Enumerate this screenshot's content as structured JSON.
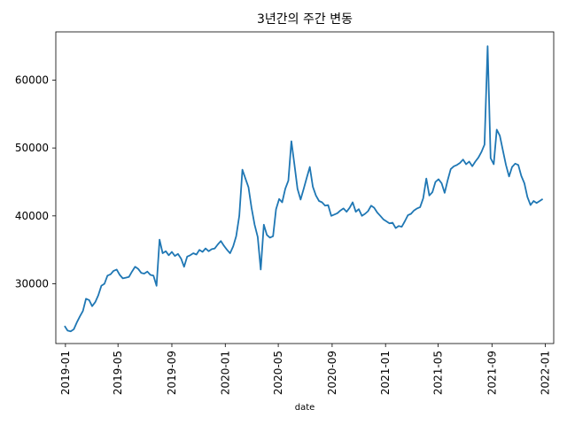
{
  "chart_data": {
    "type": "line",
    "title": "3년간의 주간 변동",
    "xlabel": "date",
    "ylabel": "",
    "grid": false,
    "color": "#1f77b4",
    "x_ticks": [
      "2019-01",
      "2019-05",
      "2019-09",
      "2020-01",
      "2020-05",
      "2020-09",
      "2021-01",
      "2021-05",
      "2021-09",
      "2022-01"
    ],
    "y_ticks": [
      30000,
      40000,
      50000,
      60000
    ],
    "xlim": [
      "2018-12-10",
      "2022-01-20"
    ],
    "ylim": [
      21200,
      67100
    ],
    "series": [
      {
        "x": [
          "2018-12-30",
          "2019-01-06",
          "2019-01-13",
          "2019-01-20",
          "2019-01-27",
          "2019-02-03",
          "2019-02-10",
          "2019-02-17",
          "2019-02-24",
          "2019-03-03",
          "2019-03-10",
          "2019-03-17",
          "2019-03-24",
          "2019-03-31",
          "2019-04-07",
          "2019-04-14",
          "2019-04-21",
          "2019-04-28",
          "2019-05-05",
          "2019-05-12",
          "2019-05-19",
          "2019-05-26",
          "2019-06-02",
          "2019-06-09",
          "2019-06-16",
          "2019-06-23",
          "2019-06-30",
          "2019-07-07",
          "2019-07-14",
          "2019-07-21",
          "2019-07-28",
          "2019-08-04",
          "2019-08-11",
          "2019-08-18",
          "2019-08-25",
          "2019-09-01",
          "2019-09-08",
          "2019-09-15",
          "2019-09-22",
          "2019-09-29",
          "2019-10-06",
          "2019-10-13",
          "2019-10-20",
          "2019-10-27",
          "2019-11-03",
          "2019-11-10",
          "2019-11-17",
          "2019-11-24",
          "2019-12-01",
          "2019-12-08",
          "2019-12-15",
          "2019-12-22",
          "2019-12-29",
          "2020-01-05",
          "2020-01-12",
          "2020-01-19",
          "2020-01-26",
          "2020-02-02",
          "2020-02-09",
          "2020-02-16",
          "2020-02-23",
          "2020-03-01",
          "2020-03-08",
          "2020-03-15",
          "2020-03-22",
          "2020-03-29",
          "2020-04-05",
          "2020-04-12",
          "2020-04-19",
          "2020-04-26",
          "2020-05-03",
          "2020-05-10",
          "2020-05-17",
          "2020-05-24",
          "2020-05-31",
          "2020-06-07",
          "2020-06-14",
          "2020-06-21",
          "2020-06-28",
          "2020-07-05",
          "2020-07-12",
          "2020-07-19",
          "2020-07-26",
          "2020-08-02",
          "2020-08-09",
          "2020-08-16",
          "2020-08-23",
          "2020-08-30",
          "2020-09-06",
          "2020-09-13",
          "2020-09-20",
          "2020-09-27",
          "2020-10-04",
          "2020-10-11",
          "2020-10-18",
          "2020-10-25",
          "2020-11-01",
          "2020-11-08",
          "2020-11-15",
          "2020-11-22",
          "2020-11-29",
          "2020-12-06",
          "2020-12-13",
          "2020-12-20",
          "2020-12-27",
          "2021-01-03",
          "2021-01-10",
          "2021-01-17",
          "2021-01-24",
          "2021-01-31",
          "2021-02-07",
          "2021-02-14",
          "2021-02-21",
          "2021-02-28",
          "2021-03-07",
          "2021-03-14",
          "2021-03-21",
          "2021-03-28",
          "2021-04-04",
          "2021-04-11",
          "2021-04-18",
          "2021-04-25",
          "2021-05-02",
          "2021-05-09",
          "2021-05-16",
          "2021-05-23",
          "2021-05-30",
          "2021-06-06",
          "2021-06-13",
          "2021-06-20",
          "2021-06-27",
          "2021-07-04",
          "2021-07-11",
          "2021-07-18",
          "2021-07-25",
          "2021-08-01",
          "2021-08-08",
          "2021-08-15",
          "2021-08-22",
          "2021-08-29",
          "2021-09-05",
          "2021-09-12",
          "2021-09-19",
          "2021-09-26",
          "2021-10-03",
          "2021-10-10",
          "2021-10-17",
          "2021-10-24",
          "2021-10-31",
          "2021-11-07",
          "2021-11-14",
          "2021-11-21",
          "2021-11-28",
          "2021-12-05",
          "2021-12-12",
          "2021-12-19",
          "2021-12-26"
        ],
        "y": [
          23800,
          23100,
          23000,
          23300,
          24300,
          25200,
          26000,
          27800,
          27600,
          26700,
          27300,
          28300,
          29700,
          30000,
          31200,
          31400,
          31900,
          32100,
          31300,
          30800,
          30900,
          31000,
          31800,
          32500,
          32200,
          31600,
          31500,
          31800,
          31300,
          31200,
          29700,
          36500,
          34500,
          34800,
          34200,
          34700,
          34100,
          34400,
          33700,
          32500,
          34000,
          34200,
          34500,
          34300,
          35000,
          34700,
          35200,
          34800,
          35100,
          35200,
          35800,
          36300,
          35600,
          35000,
          34500,
          35500,
          37000,
          40000,
          46800,
          45500,
          44200,
          41200,
          38700,
          36900,
          32100,
          38700,
          37200,
          36800,
          37000,
          41000,
          42500,
          42000,
          44000,
          45200,
          51000,
          47500,
          44000,
          42400,
          44000,
          45600,
          47200,
          44300,
          43000,
          42200,
          42000,
          41500,
          41600,
          40000,
          40200,
          40400,
          40800,
          41100,
          40600,
          41200,
          42000,
          40600,
          41000,
          40000,
          40300,
          40700,
          41500,
          41200,
          40500,
          40000,
          39500,
          39200,
          38900,
          39000,
          38200,
          38500,
          38400,
          39200,
          40100,
          40300,
          40800,
          41100,
          41300,
          42600,
          45500,
          43000,
          43500,
          45000,
          45400,
          44800,
          43400,
          45300,
          46900,
          47300,
          47500,
          47800,
          48300,
          47600,
          48000,
          47300,
          48000,
          48600,
          49400,
          50500,
          65000,
          48500,
          47600,
          52700,
          51800,
          49600,
          47500,
          45800,
          47200,
          47700,
          47500,
          45900,
          44800,
          42800,
          41600,
          42200,
          41900,
          42200,
          42500
        ]
      }
    ]
  }
}
